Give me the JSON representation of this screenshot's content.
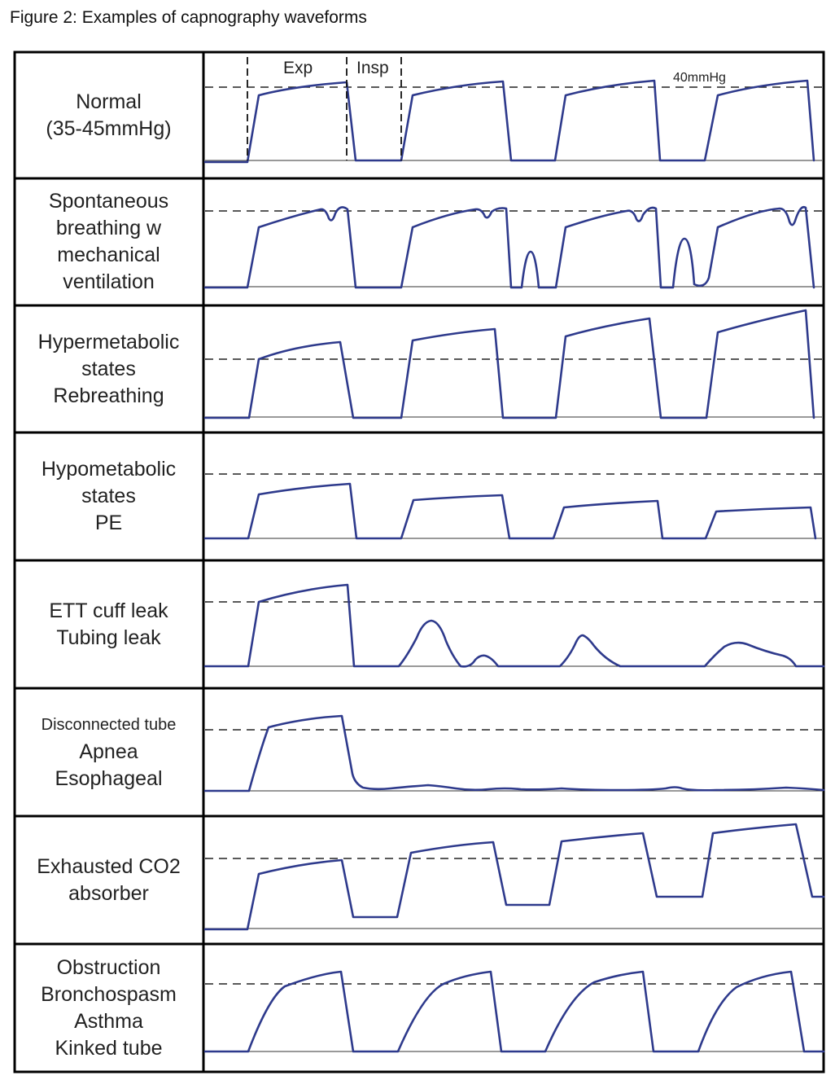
{
  "figure": {
    "title": "Figure 2: Examples of capnography waveforms",
    "annotations": {
      "exp": "Exp",
      "insp": "Insp",
      "reference": "40mmHg"
    },
    "colors": {
      "waveform": "#2e3a8c",
      "border": "#000000",
      "reference_line": "#222222",
      "text": "#222222"
    },
    "rows": [
      {
        "label_lines": [
          "Normal",
          "(35-45mmHg)"
        ]
      },
      {
        "label_lines": [
          "Spontaneous",
          "breathing w",
          "mechanical",
          "ventilation"
        ]
      },
      {
        "label_lines": [
          "Hypermetabolic",
          "states",
          "Rebreathing"
        ]
      },
      {
        "label_lines": [
          "Hypometabolic",
          "states",
          "PE"
        ]
      },
      {
        "label_lines": [
          "ETT cuff leak",
          "Tubing leak"
        ]
      },
      {
        "label_lines": [
          "Disconnected tube",
          "Apnea",
          "Esophageal"
        ]
      },
      {
        "label_lines": [
          "Exhausted CO2",
          "absorber"
        ]
      },
      {
        "label_lines": [
          "Obstruction",
          "Bronchospasm",
          "Asthma",
          "Kinked tube"
        ]
      }
    ]
  }
}
